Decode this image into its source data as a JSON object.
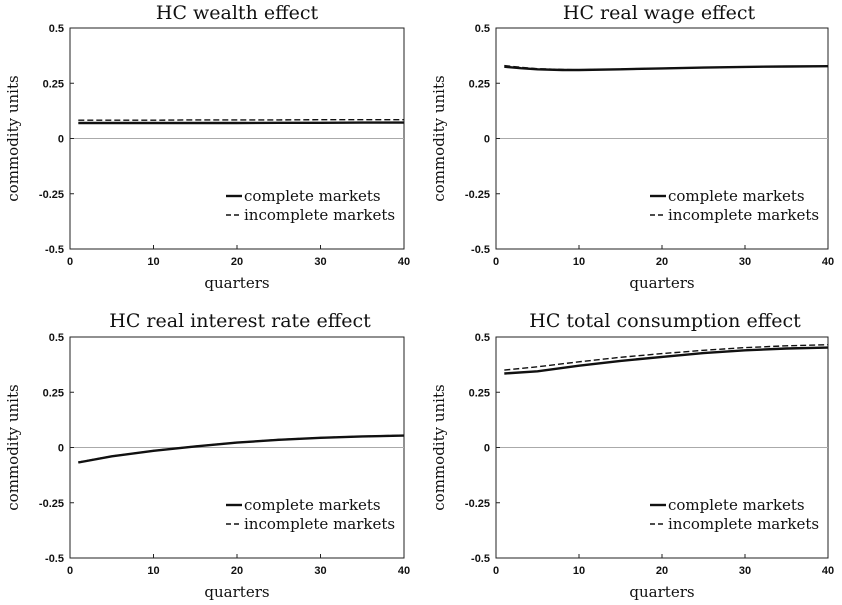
{
  "chart_data": [
    {
      "type": "line",
      "title": "HC wealth effect",
      "xlabel": "quarters",
      "ylabel": "commodity units",
      "xlim": [
        0,
        40
      ],
      "ylim": [
        -0.5,
        0.5
      ],
      "xticks": [
        "0",
        "10",
        "20",
        "30",
        "40"
      ],
      "yticks": [
        "0.5",
        "0.25",
        "0",
        "-0.25",
        "-0.5"
      ],
      "zero_line": true,
      "legend_position": "lower-right",
      "series": [
        {
          "name": "complete markets",
          "style": "solid",
          "x": [
            1,
            5,
            10,
            15,
            20,
            25,
            30,
            35,
            40
          ],
          "values": [
            0.07,
            0.07,
            0.07,
            0.07,
            0.07,
            0.071,
            0.071,
            0.072,
            0.072
          ]
        },
        {
          "name": "incomplete markets",
          "style": "dashed",
          "x": [
            1,
            5,
            10,
            15,
            20,
            25,
            30,
            35,
            40
          ],
          "values": [
            0.083,
            0.083,
            0.083,
            0.084,
            0.084,
            0.084,
            0.085,
            0.085,
            0.085
          ]
        }
      ]
    },
    {
      "type": "line",
      "title": "HC real wage effect",
      "xlabel": "quarters",
      "ylabel": "commodity units",
      "xlim": [
        0,
        40
      ],
      "ylim": [
        -0.5,
        0.5
      ],
      "xticks": [
        "0",
        "10",
        "20",
        "30",
        "40"
      ],
      "yticks": [
        "0.5",
        "0.25",
        "0",
        "-0.25",
        "-0.5"
      ],
      "zero_line": true,
      "legend_position": "lower-right",
      "series": [
        {
          "name": "complete markets",
          "style": "solid",
          "x": [
            1,
            3,
            5,
            8,
            10,
            15,
            20,
            25,
            30,
            35,
            40
          ],
          "values": [
            0.325,
            0.318,
            0.313,
            0.31,
            0.31,
            0.313,
            0.317,
            0.321,
            0.324,
            0.326,
            0.327
          ]
        },
        {
          "name": "incomplete markets",
          "style": "dashed",
          "x": [
            1,
            3,
            5,
            8,
            10,
            15,
            20,
            25,
            30,
            35,
            40
          ],
          "values": [
            0.33,
            0.322,
            0.316,
            0.312,
            0.311,
            0.314,
            0.318,
            0.321,
            0.324,
            0.326,
            0.327
          ]
        }
      ]
    },
    {
      "type": "line",
      "title": "HC real interest rate effect",
      "xlabel": "quarters",
      "ylabel": "commodity units",
      "xlim": [
        0,
        40
      ],
      "ylim": [
        -0.5,
        0.5
      ],
      "xticks": [
        "0",
        "10",
        "20",
        "30",
        "40"
      ],
      "yticks": [
        "0.5",
        "0.25",
        "0",
        "-0.25",
        "-0.5"
      ],
      "zero_line": true,
      "legend_position": "lower-right",
      "series": [
        {
          "name": "complete markets",
          "style": "solid",
          "x": [
            1,
            5,
            10,
            15,
            20,
            25,
            30,
            35,
            40
          ],
          "values": [
            -0.068,
            -0.04,
            -0.015,
            0.005,
            0.022,
            0.035,
            0.044,
            0.05,
            0.054
          ]
        },
        {
          "name": "incomplete markets",
          "style": "dashed",
          "x": [
            1,
            5,
            10,
            15,
            20,
            25,
            30,
            35,
            40
          ],
          "values": [
            -0.066,
            -0.039,
            -0.014,
            0.006,
            0.023,
            0.036,
            0.045,
            0.051,
            0.055
          ]
        }
      ]
    },
    {
      "type": "line",
      "title": "HC total consumption effect",
      "xlabel": "quarters",
      "ylabel": "commodity units",
      "xlim": [
        0,
        40
      ],
      "ylim": [
        -0.5,
        0.5
      ],
      "xticks": [
        "0",
        "10",
        "20",
        "30",
        "40"
      ],
      "yticks": [
        "0.5",
        "0.25",
        "0",
        "-0.25",
        "-0.5"
      ],
      "zero_line": true,
      "legend_position": "lower-right",
      "series": [
        {
          "name": "complete markets",
          "style": "solid",
          "x": [
            1,
            5,
            10,
            15,
            20,
            25,
            30,
            35,
            40
          ],
          "values": [
            0.335,
            0.345,
            0.37,
            0.392,
            0.41,
            0.427,
            0.44,
            0.448,
            0.452
          ]
        },
        {
          "name": "incomplete markets",
          "style": "dashed",
          "x": [
            1,
            5,
            10,
            15,
            20,
            25,
            30,
            35,
            40
          ],
          "values": [
            0.35,
            0.365,
            0.388,
            0.408,
            0.425,
            0.44,
            0.452,
            0.46,
            0.465
          ]
        }
      ]
    }
  ]
}
